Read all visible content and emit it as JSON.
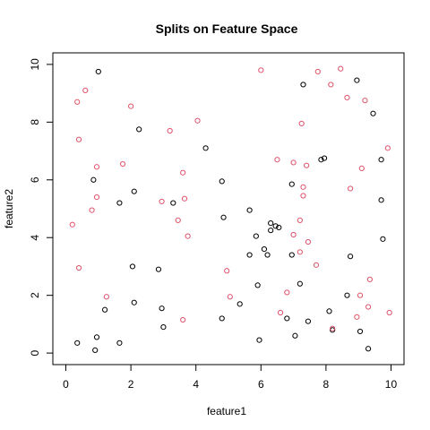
{
  "chart_data": {
    "type": "scatter",
    "title": "Splits on Feature Space",
    "xlabel": "feature1",
    "ylabel": "feature2",
    "xlim": [
      -0.4,
      10.4
    ],
    "ylim": [
      -0.4,
      10.4
    ],
    "xticks": [
      "0",
      "2",
      "4",
      "6",
      "8",
      "10"
    ],
    "yticks": [
      "0",
      "2",
      "4",
      "6",
      "8",
      "10"
    ],
    "grid": false,
    "legend": "none",
    "colors": {
      "series_a": "#000000",
      "series_b": "#DF536B"
    },
    "series": [
      {
        "color": "#000000",
        "points": [
          [
            1.0,
            9.75
          ],
          [
            2.25,
            7.75
          ],
          [
            4.3,
            7.1
          ],
          [
            7.3,
            9.3
          ],
          [
            8.95,
            9.45
          ],
          [
            9.45,
            8.3
          ],
          [
            0.85,
            6.0
          ],
          [
            2.1,
            5.6
          ],
          [
            1.65,
            5.2
          ],
          [
            3.3,
            5.2
          ],
          [
            4.8,
            5.95
          ],
          [
            4.85,
            4.7
          ],
          [
            5.85,
            4.05
          ],
          [
            5.65,
            3.4
          ],
          [
            6.1,
            3.6
          ],
          [
            6.3,
            4.5
          ],
          [
            6.45,
            4.4
          ],
          [
            6.55,
            4.35
          ],
          [
            6.2,
            3.4
          ],
          [
            6.95,
            3.4
          ],
          [
            6.3,
            4.25
          ],
          [
            5.65,
            4.95
          ],
          [
            7.85,
            6.7
          ],
          [
            7.95,
            6.75
          ],
          [
            6.95,
            5.85
          ],
          [
            9.7,
            6.7
          ],
          [
            9.7,
            5.3
          ],
          [
            9.75,
            3.95
          ],
          [
            8.75,
            3.35
          ],
          [
            7.2,
            2.4
          ],
          [
            8.65,
            2.0
          ],
          [
            7.45,
            1.1
          ],
          [
            8.1,
            1.45
          ],
          [
            8.2,
            0.8
          ],
          [
            9.05,
            0.75
          ],
          [
            9.3,
            0.15
          ],
          [
            7.05,
            0.6
          ],
          [
            6.8,
            1.2
          ],
          [
            5.95,
            0.45
          ],
          [
            5.9,
            2.35
          ],
          [
            5.35,
            1.7
          ],
          [
            4.8,
            1.2
          ],
          [
            2.85,
            2.9
          ],
          [
            2.05,
            3.0
          ],
          [
            2.1,
            1.75
          ],
          [
            2.95,
            1.55
          ],
          [
            3.0,
            0.9
          ],
          [
            1.2,
            1.5
          ],
          [
            0.95,
            0.55
          ],
          [
            0.9,
            0.1
          ],
          [
            1.65,
            0.35
          ],
          [
            0.35,
            0.35
          ]
        ]
      },
      {
        "color": "#DF536B",
        "points": [
          [
            0.35,
            8.7
          ],
          [
            0.6,
            9.1
          ],
          [
            0.4,
            7.4
          ],
          [
            2.0,
            8.55
          ],
          [
            3.2,
            7.7
          ],
          [
            4.05,
            8.05
          ],
          [
            6.0,
            9.8
          ],
          [
            7.75,
            9.75
          ],
          [
            8.45,
            9.85
          ],
          [
            8.15,
            9.3
          ],
          [
            8.65,
            8.85
          ],
          [
            9.2,
            8.75
          ],
          [
            7.25,
            7.95
          ],
          [
            0.95,
            6.45
          ],
          [
            1.75,
            6.55
          ],
          [
            3.6,
            6.25
          ],
          [
            0.95,
            5.4
          ],
          [
            0.8,
            4.95
          ],
          [
            0.2,
            4.45
          ],
          [
            2.95,
            5.25
          ],
          [
            3.65,
            5.35
          ],
          [
            3.45,
            4.6
          ],
          [
            3.75,
            4.05
          ],
          [
            6.5,
            6.7
          ],
          [
            7.0,
            6.6
          ],
          [
            7.4,
            6.5
          ],
          [
            7.3,
            5.75
          ],
          [
            7.3,
            5.45
          ],
          [
            8.75,
            5.7
          ],
          [
            9.1,
            6.4
          ],
          [
            9.9,
            7.1
          ],
          [
            7.2,
            4.6
          ],
          [
            7.0,
            4.1
          ],
          [
            7.45,
            3.85
          ],
          [
            7.2,
            3.5
          ],
          [
            7.7,
            3.05
          ],
          [
            4.95,
            2.85
          ],
          [
            5.05,
            1.95
          ],
          [
            6.8,
            2.1
          ],
          [
            6.6,
            1.4
          ],
          [
            9.35,
            2.55
          ],
          [
            9.05,
            2.0
          ],
          [
            9.3,
            1.6
          ],
          [
            8.95,
            1.25
          ],
          [
            9.95,
            1.4
          ],
          [
            0.4,
            2.95
          ],
          [
            1.25,
            1.95
          ],
          [
            3.6,
            1.15
          ],
          [
            8.2,
            0.85
          ]
        ]
      }
    ]
  }
}
